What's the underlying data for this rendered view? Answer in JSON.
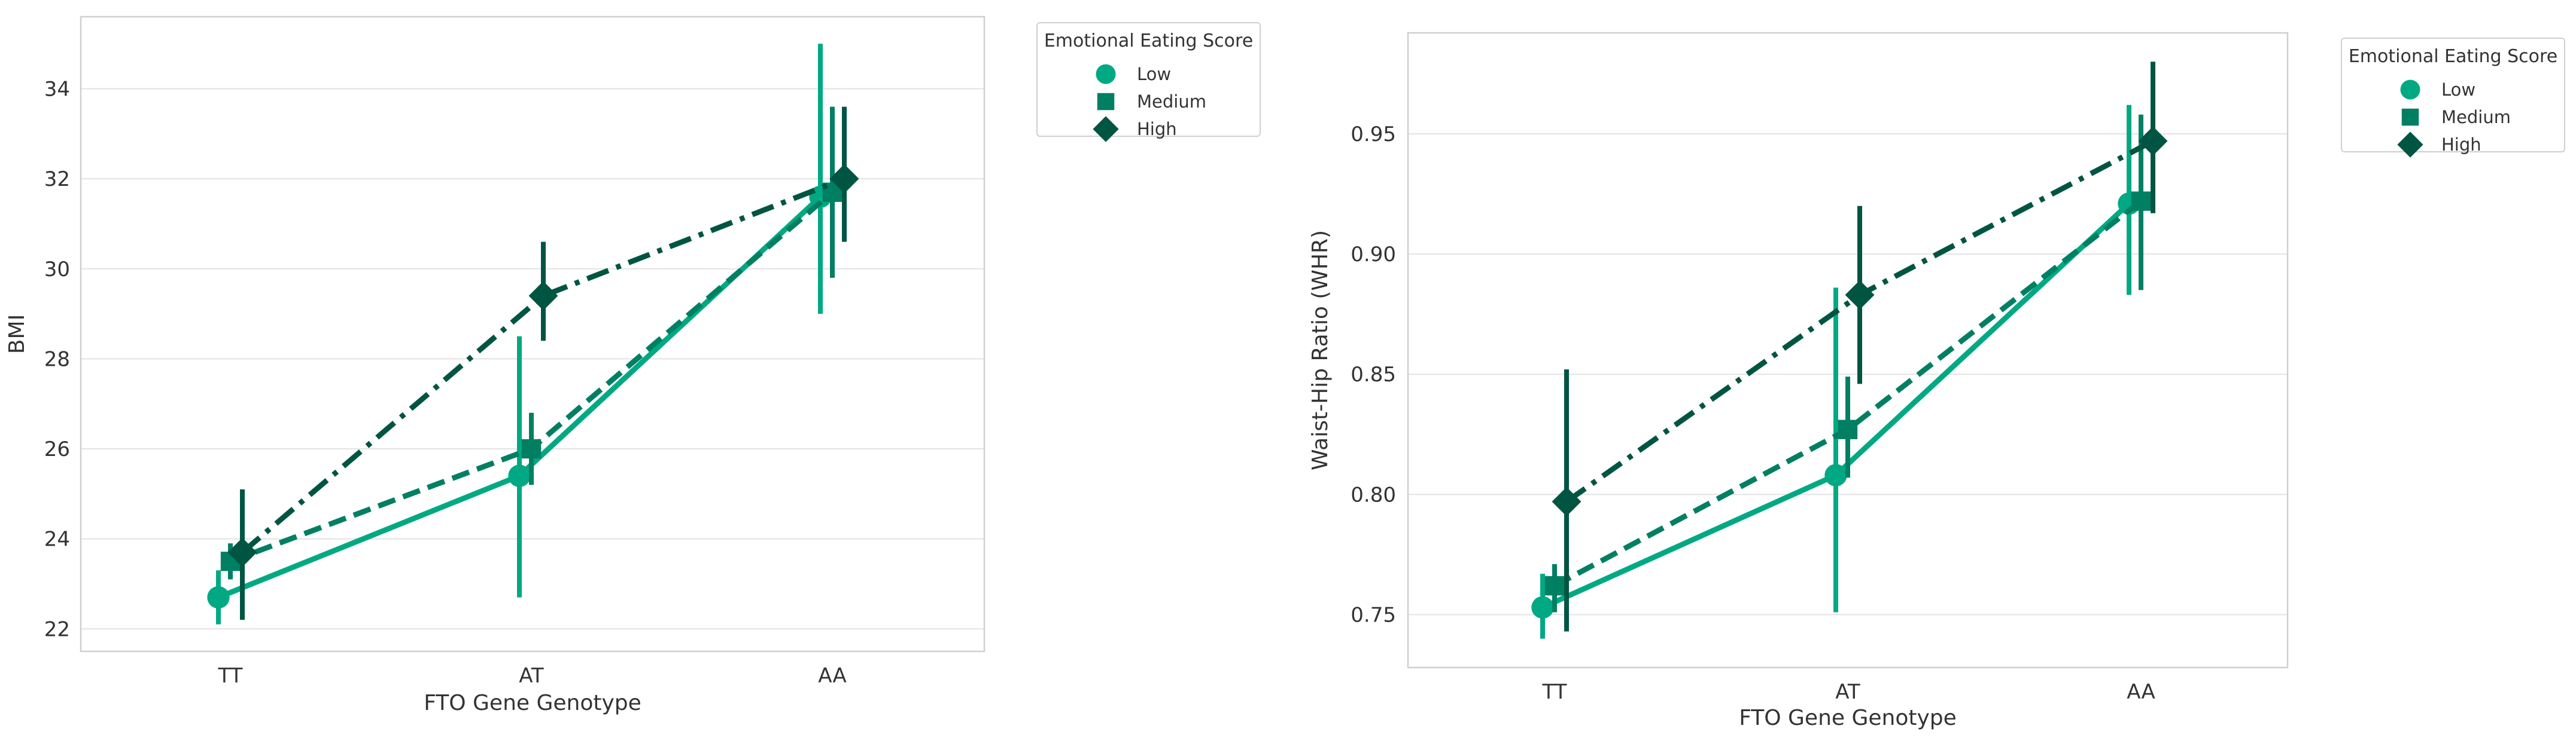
{
  "colors": {
    "Low": "#00a983",
    "Medium": "#007f63",
    "High": "#005542",
    "grid": "#e3e3e3",
    "frame": "#cfcfcf",
    "text": "#333333"
  },
  "legend": {
    "title": "Emotional Eating Score",
    "items": [
      {
        "label": "Low",
        "marker": "circle",
        "color": "#00a983"
      },
      {
        "label": "Medium",
        "marker": "square",
        "color": "#007f63"
      },
      {
        "label": "High",
        "marker": "diamond",
        "color": "#005542"
      }
    ]
  },
  "chart_data": [
    {
      "type": "line",
      "title": "",
      "xlabel": "FTO Gene Genotype",
      "ylabel": "BMI",
      "categories": [
        "TT",
        "AT",
        "AA"
      ],
      "ylim": [
        21.5,
        35.6
      ],
      "yticks": [
        22,
        24,
        26,
        28,
        30,
        32,
        34
      ],
      "ytick_labels": [
        "22",
        "24",
        "26",
        "28",
        "30",
        "32",
        "34"
      ],
      "grid": true,
      "legend_position": "outside-top-right",
      "series": [
        {
          "name": "Low",
          "marker": "circle",
          "linestyle": "solid",
          "values": [
            22.7,
            25.4,
            31.6
          ],
          "ci_low": [
            22.1,
            22.7,
            29.0
          ],
          "ci_high": [
            23.3,
            28.5,
            35.0
          ]
        },
        {
          "name": "Medium",
          "marker": "square",
          "linestyle": "dashed",
          "values": [
            23.5,
            26.0,
            31.7
          ],
          "ci_low": [
            23.1,
            25.2,
            29.8
          ],
          "ci_high": [
            23.9,
            26.8,
            33.6
          ]
        },
        {
          "name": "High",
          "marker": "diamond",
          "linestyle": "dashdot",
          "values": [
            23.7,
            29.4,
            32.0
          ],
          "ci_low": [
            22.2,
            28.4,
            30.6
          ],
          "ci_high": [
            25.1,
            30.6,
            33.6
          ]
        }
      ]
    },
    {
      "type": "line",
      "title": "",
      "xlabel": "FTO Gene Genotype",
      "ylabel": "Waist-Hip Ratio (WHR)",
      "categories": [
        "TT",
        "AT",
        "AA"
      ],
      "ylim": [
        0.728,
        0.992
      ],
      "yticks": [
        0.75,
        0.8,
        0.85,
        0.9,
        0.95
      ],
      "ytick_labels": [
        "0.75",
        "0.80",
        "0.85",
        "0.90",
        "0.95"
      ],
      "grid": true,
      "legend_position": "outside-top-right",
      "series": [
        {
          "name": "Low",
          "marker": "circle",
          "linestyle": "solid",
          "values": [
            0.753,
            0.808,
            0.921
          ],
          "ci_low": [
            0.74,
            0.751,
            0.883
          ],
          "ci_high": [
            0.767,
            0.886,
            0.962
          ]
        },
        {
          "name": "Medium",
          "marker": "square",
          "linestyle": "dashed",
          "values": [
            0.762,
            0.827,
            0.922
          ],
          "ci_low": [
            0.751,
            0.807,
            0.885
          ],
          "ci_high": [
            0.771,
            0.849,
            0.958
          ]
        },
        {
          "name": "High",
          "marker": "diamond",
          "linestyle": "dashdot",
          "values": [
            0.797,
            0.883,
            0.947
          ],
          "ci_low": [
            0.743,
            0.846,
            0.917
          ],
          "ci_high": [
            0.852,
            0.92,
            0.98
          ]
        }
      ]
    }
  ]
}
